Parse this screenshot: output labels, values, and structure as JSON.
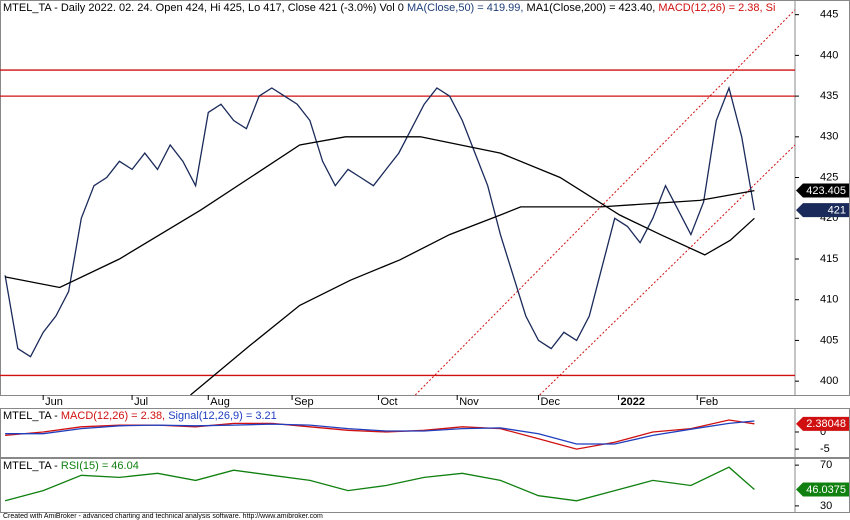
{
  "chart_data": [
    {
      "type": "line",
      "title_parts": [
        {
          "text": "MTEL_TA - Daily 2022. 02. 24. Open 424, Hi 425, Lo 417, Close 421 (-3.0%) Vol 0 ",
          "color": "#000000"
        },
        {
          "text": "MA(Close,50) = 419.99, ",
          "color": "#1f3f7a"
        },
        {
          "text": "MA1(Close,200) = 423.40, ",
          "color": "#000000"
        },
        {
          "text": "MACD(12,26) = 2.38, Si",
          "color": "#d01010"
        }
      ],
      "xlim": [
        -0.4,
        62.2
      ],
      "xticks": [
        {
          "value": 3,
          "label": "Jun"
        },
        {
          "value": 10,
          "label": "Jul"
        },
        {
          "value": 16,
          "label": "Aug"
        },
        {
          "value": 22.6,
          "label": "Sep"
        },
        {
          "value": 29.4,
          "label": "Oct"
        },
        {
          "value": 35.6,
          "label": "Nov"
        },
        {
          "value": 42,
          "label": "Dec"
        },
        {
          "value": 48.3,
          "label": "2022"
        },
        {
          "value": 54.5,
          "label": "Feb"
        }
      ],
      "ylim": [
        398.3,
        446.8
      ],
      "yticks": [
        400,
        405,
        410,
        415,
        420,
        425,
        430,
        435,
        440,
        445
      ],
      "series": [
        {
          "name": "Close",
          "color": "#1a2a5a",
          "x": [
            0,
            1,
            2,
            3,
            4,
            5,
            6,
            7,
            8,
            9,
            10,
            11,
            12,
            13,
            14,
            15,
            16,
            17,
            18,
            19,
            20,
            21,
            22,
            23,
            24,
            25,
            26,
            27,
            28,
            29,
            30,
            31,
            32,
            33,
            34,
            35,
            36,
            37,
            38,
            39,
            40,
            41,
            42,
            43,
            44,
            45,
            46,
            47,
            48,
            49,
            50,
            51,
            52,
            53,
            54,
            55,
            56,
            57,
            58,
            59
          ],
          "values": [
            413,
            404,
            403,
            406,
            408,
            411,
            420,
            424,
            425,
            427,
            426,
            428,
            426,
            429,
            427,
            424,
            433,
            434,
            432,
            431,
            435,
            436,
            435,
            434,
            432,
            427,
            424,
            426,
            425,
            424,
            426,
            428,
            431,
            434,
            436,
            435,
            432,
            428,
            424,
            418,
            413,
            408,
            405,
            404,
            406,
            405,
            408,
            414,
            420,
            419,
            417,
            420,
            424,
            421,
            418,
            422,
            432,
            436,
            430,
            421
          ]
        },
        {
          "name": "MA(Close,50)",
          "color": "#000000",
          "x": [
            0,
            4.3,
            9,
            15.4,
            23.2,
            26.8,
            32.7,
            39,
            43.7,
            48.4,
            51.6,
            55.1,
            57.1,
            59
          ],
          "values": [
            412.8,
            411.5,
            415,
            421,
            429,
            430,
            430,
            428,
            425,
            420.4,
            418,
            415.5,
            417.3,
            420
          ]
        },
        {
          "name": "MA1(Close,200)",
          "color": "#000000",
          "x": [
            14.6,
            19.3,
            23.2,
            27.2,
            31.1,
            35,
            39,
            40.6,
            46.9,
            54.7,
            59
          ],
          "values": [
            398.3,
            404.4,
            409.3,
            412.4,
            414.9,
            418,
            420.4,
            421.4,
            421.4,
            422.2,
            423.4
          ]
        }
      ],
      "levels": [
        {
          "value": 438.2,
          "color": "#d01010"
        },
        {
          "value": 435,
          "color": "#d01010"
        },
        {
          "value": 400.7,
          "color": "#d01010"
        }
      ],
      "channels": [
        {
          "x": [
            32.3,
            62.2
          ],
          "y": [
            398.3,
            445.6
          ],
          "color": "#d01010"
        },
        {
          "x": [
            42.1,
            62.2
          ],
          "y": [
            398.3,
            429
          ],
          "color": "#d01010"
        }
      ],
      "badges": [
        {
          "value": 423.405,
          "color": "#000000"
        },
        {
          "value": 421,
          "color": "#1a2a5a"
        }
      ]
    },
    {
      "type": "line",
      "title_parts": [
        {
          "text": "MTEL_TA - ",
          "color": "#000000"
        },
        {
          "text": "MACD(12,26) = 2.38, ",
          "color": "#d01010"
        },
        {
          "text": "Signal(12,26,9) = 3.21",
          "color": "#1f3fbf"
        }
      ],
      "xlim": [
        -0.4,
        62.2
      ],
      "ylim": [
        -7.3,
        7
      ],
      "yticks": [
        0,
        -5
      ],
      "series": [
        {
          "name": "MACD",
          "color": "#d01010",
          "x": [
            0,
            3,
            6,
            9,
            12,
            15,
            18,
            21,
            24,
            27,
            30,
            33,
            36,
            39,
            42,
            45,
            48,
            51,
            54,
            57,
            59
          ],
          "values": [
            -1,
            0,
            1.5,
            2,
            2,
            1.5,
            2.5,
            2.5,
            1.5,
            0.5,
            0,
            0.5,
            1.5,
            1,
            -2,
            -5,
            -3,
            0,
            1,
            3.5,
            2.38
          ]
        },
        {
          "name": "Signal",
          "color": "#1f3fbf",
          "x": [
            0,
            3,
            6,
            9,
            12,
            15,
            18,
            21,
            24,
            27,
            30,
            33,
            36,
            39,
            42,
            45,
            48,
            51,
            54,
            57,
            59
          ],
          "values": [
            -0.5,
            -0.5,
            1,
            1.8,
            2,
            1.8,
            2,
            2.3,
            2,
            1,
            0.3,
            0.3,
            1,
            1.2,
            -0.5,
            -3.5,
            -3.5,
            -1,
            0.8,
            2.5,
            3.21
          ]
        }
      ],
      "badges": [
        {
          "value": 2.38048,
          "color": "#d01010"
        }
      ]
    },
    {
      "type": "line",
      "title_parts": [
        {
          "text": "MTEL_TA - ",
          "color": "#000000"
        },
        {
          "text": "RSI(15) = 46.04",
          "color": "#108010"
        }
      ],
      "xlim": [
        -0.4,
        62.2
      ],
      "ylim": [
        24,
        77
      ],
      "yticks": [
        70,
        30
      ],
      "series": [
        {
          "name": "RSI",
          "color": "#108010",
          "x": [
            0,
            3,
            6,
            9,
            12,
            15,
            18,
            21,
            24,
            27,
            30,
            33,
            36,
            39,
            42,
            45,
            48,
            51,
            54,
            57,
            59
          ],
          "values": [
            35,
            45,
            60,
            58,
            62,
            55,
            65,
            60,
            55,
            45,
            50,
            58,
            62,
            55,
            40,
            35,
            45,
            55,
            50,
            68,
            46.04
          ]
        }
      ],
      "badges": [
        {
          "value": 46.0375,
          "color": "#108010"
        }
      ]
    }
  ],
  "footer": "Created with AmiBroker - advanced charting and technical analysis software. http://www.amibroker.com"
}
